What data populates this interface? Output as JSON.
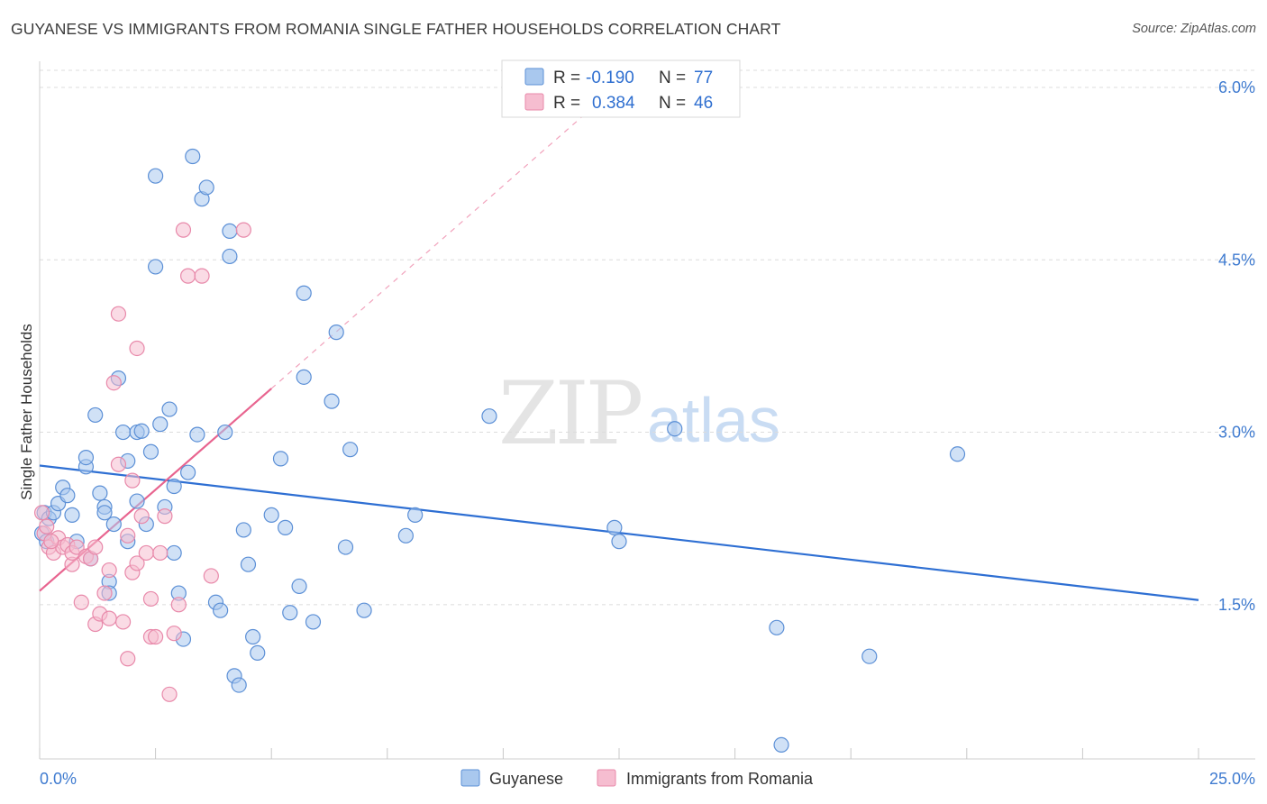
{
  "title": "GUYANESE VS IMMIGRANTS FROM ROMANIA SINGLE FATHER HOUSEHOLDS CORRELATION CHART",
  "source": "Source: ZipAtlas.com",
  "watermark": {
    "zip": "ZIP",
    "atlas": "atlas"
  },
  "colors": {
    "blue_fill": "#a9c8ee",
    "blue_stroke": "#5b8fd6",
    "blue_line": "#2e6fd3",
    "pink_fill": "#f6bdd0",
    "pink_stroke": "#e889aa",
    "pink_line": "#e8648f",
    "axis_label": "#3f7bd0",
    "grid": "#dcdcdc"
  },
  "legend": {
    "rows": [
      {
        "r_label": "R =",
        "r_value": "-0.190",
        "n_label": "N =",
        "n_value": "77",
        "series": "blue"
      },
      {
        "r_label": "R =",
        "r_value": "0.384",
        "n_label": "N =",
        "n_value": "46",
        "series": "pink"
      }
    ]
  },
  "chart_data": {
    "type": "scatter",
    "title": "GUYANESE VS IMMIGRANTS FROM ROMANIA SINGLE FATHER HOUSEHOLDS CORRELATION CHART",
    "xlabel": "",
    "ylabel": "Single Father Households",
    "xlim": [
      0,
      25
    ],
    "ylim": [
      0,
      6.3
    ],
    "x_tick_labels": [
      "0.0%",
      "25.0%"
    ],
    "y_ticks": [
      1.5,
      3.0,
      4.5,
      6.0
    ],
    "y_tick_labels": [
      "1.5%",
      "3.0%",
      "4.5%",
      "6.0%"
    ],
    "grid": true,
    "legend_position": "top-center",
    "series": [
      {
        "name": "Guyanese",
        "color": "#5b8fd6",
        "trend": {
          "x": [
            0,
            25
          ],
          "y": [
            2.71,
            1.54
          ]
        },
        "points": [
          [
            0.1,
            2.3
          ],
          [
            0.2,
            2.25
          ],
          [
            0.3,
            2.3
          ],
          [
            0.4,
            2.38
          ],
          [
            0.5,
            2.52
          ],
          [
            0.6,
            2.45
          ],
          [
            0.7,
            2.28
          ],
          [
            0.8,
            2.05
          ],
          [
            1.0,
            2.7
          ],
          [
            1.0,
            2.78
          ],
          [
            1.1,
            1.9
          ],
          [
            1.2,
            3.15
          ],
          [
            1.3,
            2.47
          ],
          [
            1.4,
            2.35
          ],
          [
            1.4,
            2.3
          ],
          [
            1.5,
            1.7
          ],
          [
            1.5,
            1.6
          ],
          [
            1.6,
            2.2
          ],
          [
            1.7,
            3.47
          ],
          [
            1.8,
            3.0
          ],
          [
            1.9,
            2.75
          ],
          [
            1.9,
            2.05
          ],
          [
            2.1,
            3.0
          ],
          [
            2.1,
            2.4
          ],
          [
            2.2,
            3.01
          ],
          [
            2.3,
            2.2
          ],
          [
            2.4,
            2.83
          ],
          [
            2.5,
            5.23
          ],
          [
            2.5,
            4.44
          ],
          [
            2.6,
            3.07
          ],
          [
            2.7,
            2.35
          ],
          [
            2.8,
            3.2
          ],
          [
            2.9,
            2.53
          ],
          [
            2.9,
            1.95
          ],
          [
            3.0,
            1.6
          ],
          [
            3.1,
            1.2
          ],
          [
            3.2,
            2.65
          ],
          [
            3.3,
            5.4
          ],
          [
            3.4,
            2.98
          ],
          [
            3.5,
            5.03
          ],
          [
            3.6,
            5.13
          ],
          [
            3.8,
            1.52
          ],
          [
            3.9,
            1.45
          ],
          [
            4.0,
            3.0
          ],
          [
            4.1,
            4.53
          ],
          [
            4.1,
            4.75
          ],
          [
            4.2,
            0.88
          ],
          [
            4.3,
            0.8
          ],
          [
            4.4,
            2.15
          ],
          [
            4.5,
            1.85
          ],
          [
            4.6,
            1.22
          ],
          [
            4.7,
            1.08
          ],
          [
            5.0,
            2.28
          ],
          [
            5.2,
            2.77
          ],
          [
            5.3,
            2.17
          ],
          [
            5.4,
            1.43
          ],
          [
            5.6,
            1.66
          ],
          [
            5.7,
            3.48
          ],
          [
            5.7,
            4.21
          ],
          [
            5.9,
            1.35
          ],
          [
            6.3,
            3.27
          ],
          [
            6.4,
            3.87
          ],
          [
            6.6,
            2.0
          ],
          [
            6.7,
            2.85
          ],
          [
            7.0,
            1.45
          ],
          [
            7.9,
            2.1
          ],
          [
            8.1,
            2.28
          ],
          [
            9.7,
            3.14
          ],
          [
            12.4,
            2.17
          ],
          [
            12.5,
            2.05
          ],
          [
            13.7,
            3.03
          ],
          [
            15.9,
            1.3
          ],
          [
            16.0,
            0.28
          ],
          [
            17.9,
            1.05
          ],
          [
            19.8,
            2.81
          ],
          [
            0.05,
            2.12
          ],
          [
            0.15,
            2.05
          ]
        ]
      },
      {
        "name": "Immigrants from Romania",
        "color": "#e889aa",
        "trend": {
          "x": [
            0,
            5.0
          ],
          "y": [
            1.62,
            3.38
          ]
        },
        "trend_dashed": {
          "x": [
            5.0,
            11.8
          ],
          "y": [
            3.38,
            5.78
          ]
        },
        "points": [
          [
            0.1,
            2.12
          ],
          [
            0.2,
            2.0
          ],
          [
            0.3,
            1.95
          ],
          [
            0.4,
            2.08
          ],
          [
            0.5,
            2.0
          ],
          [
            0.6,
            2.02
          ],
          [
            0.7,
            1.85
          ],
          [
            0.7,
            1.95
          ],
          [
            0.8,
            2.0
          ],
          [
            0.9,
            1.52
          ],
          [
            1.0,
            1.92
          ],
          [
            1.1,
            1.9
          ],
          [
            1.2,
            2.0
          ],
          [
            1.2,
            1.33
          ],
          [
            1.3,
            1.42
          ],
          [
            1.4,
            1.6
          ],
          [
            1.5,
            1.38
          ],
          [
            1.5,
            1.8
          ],
          [
            1.6,
            3.43
          ],
          [
            1.7,
            2.72
          ],
          [
            1.7,
            4.03
          ],
          [
            1.8,
            1.35
          ],
          [
            1.9,
            2.1
          ],
          [
            1.9,
            1.03
          ],
          [
            2.0,
            1.78
          ],
          [
            2.0,
            2.58
          ],
          [
            2.1,
            1.86
          ],
          [
            2.1,
            3.73
          ],
          [
            2.2,
            2.27
          ],
          [
            2.3,
            1.95
          ],
          [
            2.4,
            1.22
          ],
          [
            2.4,
            1.55
          ],
          [
            2.5,
            1.22
          ],
          [
            2.6,
            1.95
          ],
          [
            2.7,
            2.27
          ],
          [
            2.8,
            0.72
          ],
          [
            2.9,
            1.25
          ],
          [
            3.0,
            1.5
          ],
          [
            3.1,
            4.76
          ],
          [
            3.2,
            4.36
          ],
          [
            3.5,
            4.36
          ],
          [
            3.7,
            1.75
          ],
          [
            4.4,
            4.76
          ],
          [
            0.05,
            2.3
          ],
          [
            0.15,
            2.18
          ],
          [
            0.25,
            2.05
          ]
        ]
      }
    ]
  }
}
